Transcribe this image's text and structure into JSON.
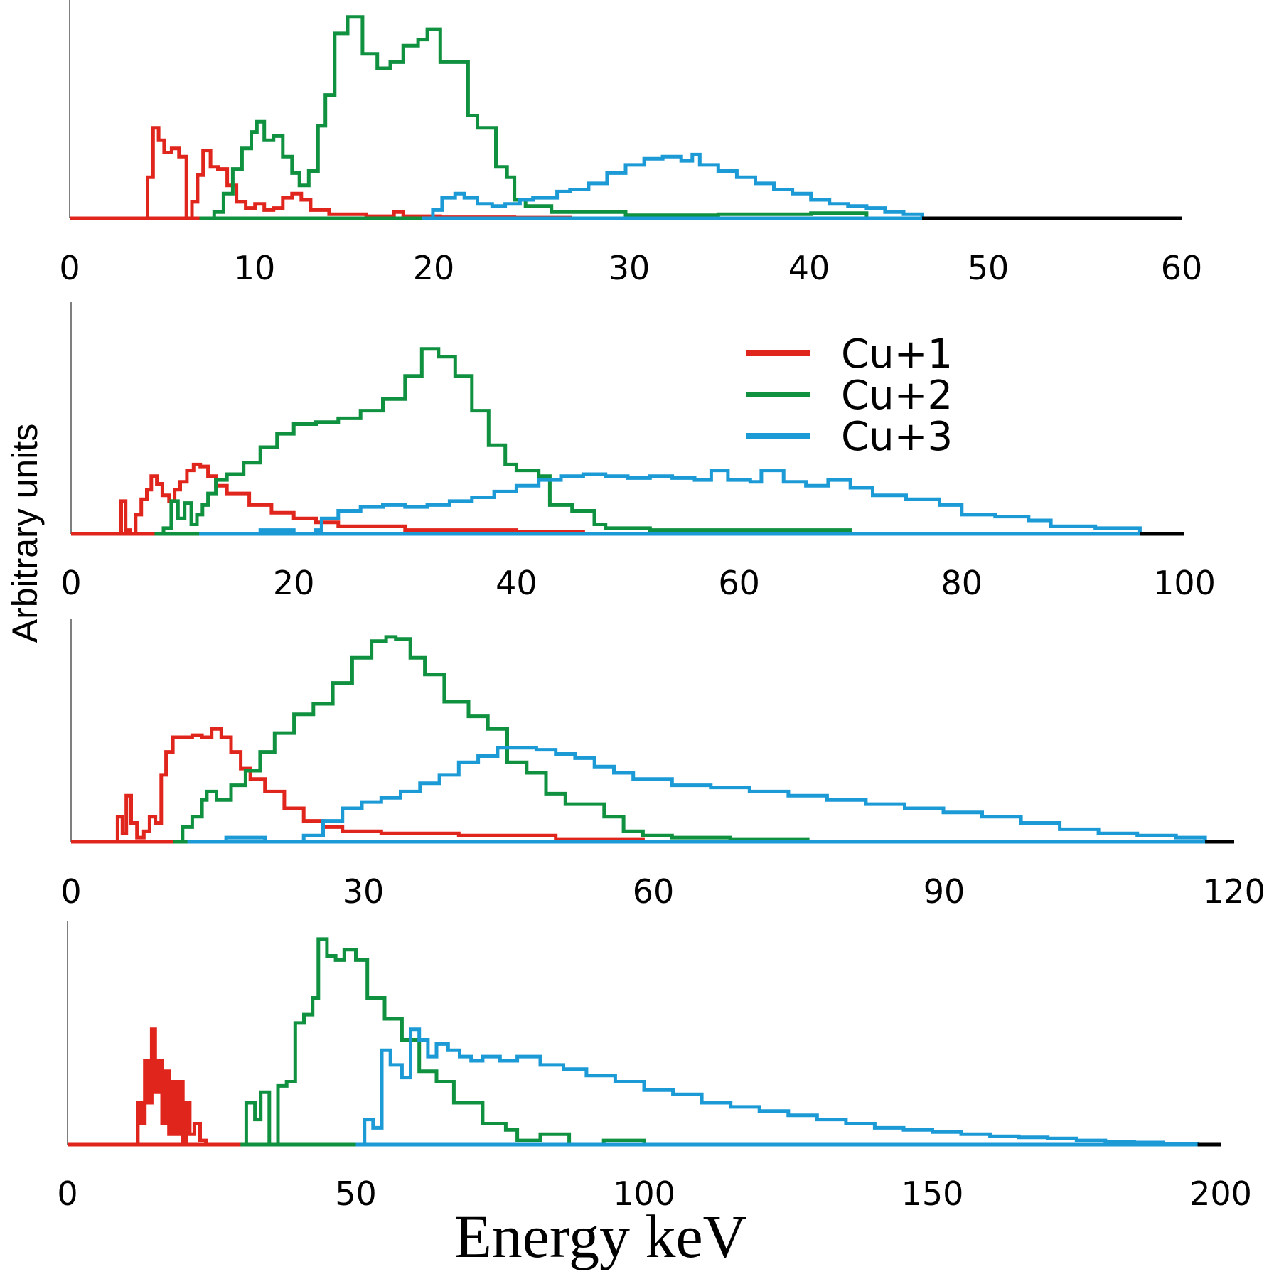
{
  "chart_data": {
    "type": "line",
    "xlabel": "Energy keV",
    "ylabel": "Arbitrary units",
    "legend": {
      "position": "upper-right of second panel",
      "entries": [
        {
          "label": "Cu+1",
          "color": "#e0251c"
        },
        {
          "label": "Cu+2",
          "color": "#0f9140"
        },
        {
          "label": "Cu+3",
          "color": "#1b9ad6"
        }
      ]
    },
    "grid": false,
    "panels": [
      {
        "xlim": [
          0,
          60
        ],
        "xticks": [
          "0",
          "10",
          "20",
          "30",
          "40",
          "50",
          "60"
        ],
        "ylim": [
          0,
          1
        ],
        "series": [
          {
            "name": "Cu+1",
            "color": "#e0251c",
            "x": [
              0,
              3.9,
              4.2,
              4.5,
              4.8,
              5.1,
              5.5,
              5.9,
              6.3,
              6.6,
              6.9,
              7.2,
              7.6,
              8.0,
              8.5,
              9.0,
              9.5,
              10.0,
              10.5,
              11.0,
              11.5,
              12.0,
              12.5,
              13.0,
              14.0,
              16.0,
              17.5,
              18.0,
              20.0,
              24.0,
              27.0
            ],
            "y": [
              0,
              0,
              0.2,
              0.44,
              0.38,
              0.32,
              0.34,
              0.3,
              0.0,
              0.08,
              0.21,
              0.33,
              0.25,
              0.24,
              0.16,
              0.08,
              0.05,
              0.07,
              0.04,
              0.05,
              0.1,
              0.12,
              0.09,
              0.04,
              0.02,
              0.01,
              0.03,
              0.01,
              0.005,
              0.003,
              0
            ]
          },
          {
            "name": "Cu+2",
            "color": "#0f9140",
            "x": [
              7.0,
              7.8,
              8.3,
              8.8,
              9.3,
              9.8,
              10.1,
              10.5,
              11.0,
              11.5,
              12.0,
              12.4,
              12.9,
              13.4,
              13.8,
              14.3,
              15.0,
              15.8,
              16.6,
              17.3,
              18.0,
              18.8,
              19.3,
              20.0,
              21.5,
              22.0,
              23.0,
              23.6,
              24.0,
              24.6,
              26.0,
              30.0,
              35.0,
              40.0,
              43.0
            ],
            "y": [
              0,
              0.03,
              0.12,
              0.24,
              0.34,
              0.42,
              0.47,
              0.38,
              0.4,
              0.3,
              0.22,
              0.16,
              0.23,
              0.45,
              0.6,
              0.9,
              0.98,
              0.8,
              0.73,
              0.76,
              0.84,
              0.87,
              0.92,
              0.76,
              0.5,
              0.44,
              0.25,
              0.2,
              0.09,
              0.06,
              0.03,
              0.015,
              0.02,
              0.025,
              0
            ]
          },
          {
            "name": "Cu+3",
            "color": "#1b9ad6",
            "x": [
              19.0,
              19.6,
              20.1,
              20.8,
              21.3,
              22.0,
              22.8,
              23.5,
              24.3,
              25.0,
              26.3,
              27.0,
              28.0,
              29.0,
              30.0,
              31.0,
              32.0,
              33.0,
              33.6,
              34.0,
              35.0,
              36.0,
              37.0,
              38.0,
              39.0,
              40.0,
              41.0,
              42.0,
              43.0,
              44.0,
              45.0,
              46.0
            ],
            "y": [
              0,
              0.04,
              0.1,
              0.12,
              0.1,
              0.07,
              0.06,
              0.07,
              0.09,
              0.1,
              0.13,
              0.14,
              0.17,
              0.22,
              0.26,
              0.29,
              0.3,
              0.28,
              0.31,
              0.26,
              0.23,
              0.2,
              0.17,
              0.14,
              0.12,
              0.09,
              0.07,
              0.06,
              0.05,
              0.03,
              0.02,
              0.0
            ]
          }
        ]
      },
      {
        "xlim": [
          0,
          100
        ],
        "xticks": [
          "0",
          "20",
          "40",
          "60",
          "80",
          "100"
        ],
        "ylim": [
          0,
          1
        ],
        "series": [
          {
            "name": "Cu+1",
            "color": "#e0251c",
            "x": [
              0,
              4.2,
              4.5,
              4.9,
              5.3,
              5.8,
              6.3,
              6.8,
              7.2,
              7.7,
              8.2,
              8.8,
              9.3,
              9.8,
              10.4,
              11.0,
              11.6,
              12.3,
              13.0,
              14.0,
              16.0,
              18.0,
              20.0,
              22.0,
              24.0,
              30.0,
              40.0,
              46.0
            ],
            "y": [
              0,
              0.0,
              0.17,
              0.02,
              0.0,
              0.1,
              0.18,
              0.23,
              0.3,
              0.26,
              0.2,
              0.17,
              0.23,
              0.27,
              0.33,
              0.36,
              0.35,
              0.3,
              0.25,
              0.21,
              0.15,
              0.11,
              0.08,
              0.06,
              0.04,
              0.02,
              0.01,
              0
            ]
          },
          {
            "name": "Cu+2",
            "color": "#0f9140",
            "x": [
              7.5,
              8.3,
              9.0,
              9.6,
              10.2,
              10.8,
              11.3,
              11.8,
              12.3,
              13.0,
              14.0,
              15.5,
              17.0,
              18.5,
              20.0,
              22.0,
              24.0,
              26.0,
              28.0,
              30.0,
              31.5,
              33.0,
              34.5,
              36.0,
              37.5,
              39.0,
              40.0,
              42.0,
              43.0,
              45.0,
              47.0,
              48.0,
              52.0,
              60.0,
              70.0
            ],
            "y": [
              0,
              0.03,
              0.17,
              0.08,
              0.16,
              0.05,
              0.1,
              0.15,
              0.21,
              0.28,
              0.31,
              0.37,
              0.45,
              0.52,
              0.57,
              0.58,
              0.6,
              0.64,
              0.7,
              0.82,
              0.96,
              0.92,
              0.82,
              0.64,
              0.46,
              0.36,
              0.33,
              0.3,
              0.15,
              0.12,
              0.05,
              0.03,
              0.02,
              0.02,
              0
            ]
          },
          {
            "name": "Cu+3",
            "color": "#1b9ad6",
            "x": [
              11.5,
              14.0,
              17.0,
              20.0,
              22.0,
              22.5,
              24.0,
              26.0,
              28.0,
              30.0,
              32.0,
              34.0,
              36.0,
              38.0,
              40.0,
              42.0,
              44.0,
              46.0,
              48.0,
              50.0,
              52.0,
              54.0,
              56.0,
              57.5,
              59.0,
              61.0,
              62.0,
              64.0,
              66.0,
              68.0,
              70.0,
              72.0,
              75.0,
              78.0,
              80.0,
              83.0,
              86.0,
              88.0,
              92.0,
              96.0
            ],
            "y": [
              0,
              0.0,
              0.02,
              0.0,
              0.02,
              0.08,
              0.12,
              0.14,
              0.15,
              0.14,
              0.15,
              0.17,
              0.19,
              0.22,
              0.25,
              0.28,
              0.3,
              0.31,
              0.3,
              0.29,
              0.3,
              0.29,
              0.28,
              0.33,
              0.28,
              0.27,
              0.33,
              0.27,
              0.25,
              0.28,
              0.24,
              0.2,
              0.18,
              0.15,
              0.1,
              0.09,
              0.07,
              0.04,
              0.03,
              0
            ]
          }
        ]
      },
      {
        "xlim": [
          0,
          120
        ],
        "xticks": [
          "0",
          "30",
          "60",
          "90",
          "120"
        ],
        "ylim": [
          0,
          1
        ],
        "series": [
          {
            "name": "Cu+1",
            "color": "#e0251c",
            "x": [
              0,
              4.3,
              4.8,
              5.3,
              5.7,
              6.2,
              6.8,
              7.5,
              8.1,
              8.7,
              9.3,
              9.8,
              10.5,
              11.5,
              12.5,
              13.5,
              14.5,
              15.5,
              16.5,
              17.5,
              18.5,
              20.0,
              22.0,
              24.0,
              26.0,
              28.0,
              32.0,
              40.0,
              50.0,
              59.0
            ],
            "y": [
              0,
              0.0,
              0.12,
              0.04,
              0.22,
              0.09,
              0.02,
              0.05,
              0.12,
              0.09,
              0.32,
              0.43,
              0.5,
              0.5,
              0.51,
              0.5,
              0.54,
              0.5,
              0.43,
              0.35,
              0.3,
              0.24,
              0.16,
              0.1,
              0.07,
              0.05,
              0.04,
              0.03,
              0.01,
              0
            ]
          },
          {
            "name": "Cu+2",
            "color": "#0f9140",
            "x": [
              10.5,
              11.5,
              12.5,
              13.5,
              14.0,
              15.0,
              16.5,
              18.0,
              19.5,
              21.0,
              23.0,
              25.0,
              27.0,
              29.0,
              31.0,
              32.5,
              33.5,
              35.0,
              36.5,
              38.5,
              41.0,
              43.0,
              45.0,
              47.0,
              49.0,
              51.0,
              53.0,
              55.0,
              57.0,
              59.0,
              62.0,
              68.0,
              76.0
            ],
            "y": [
              0,
              0.07,
              0.12,
              0.2,
              0.24,
              0.2,
              0.27,
              0.34,
              0.43,
              0.52,
              0.61,
              0.66,
              0.76,
              0.88,
              0.96,
              0.98,
              0.97,
              0.88,
              0.8,
              0.67,
              0.6,
              0.54,
              0.38,
              0.33,
              0.23,
              0.18,
              0.18,
              0.12,
              0.05,
              0.03,
              0.02,
              0.01,
              0
            ]
          },
          {
            "name": "Cu+3",
            "color": "#1b9ad6",
            "x": [
              12.0,
              16.0,
              20.0,
              24.0,
              26.0,
              28.0,
              30.0,
              32.0,
              34.0,
              36.0,
              38.0,
              40.0,
              42.0,
              44.0,
              46.0,
              48.0,
              50.0,
              52.0,
              54.0,
              56.0,
              58.0,
              62.0,
              66.0,
              70.0,
              74.0,
              78.0,
              82.0,
              86.0,
              90.0,
              94.0,
              98.0,
              102.0,
              106.0,
              110.0,
              114.0,
              117.0
            ],
            "y": [
              0,
              0.02,
              0.0,
              0.03,
              0.1,
              0.16,
              0.19,
              0.21,
              0.24,
              0.28,
              0.32,
              0.38,
              0.41,
              0.45,
              0.45,
              0.44,
              0.42,
              0.4,
              0.36,
              0.33,
              0.3,
              0.27,
              0.26,
              0.24,
              0.22,
              0.2,
              0.18,
              0.16,
              0.14,
              0.12,
              0.09,
              0.06,
              0.04,
              0.03,
              0.02,
              0
            ]
          }
        ]
      },
      {
        "xlim": [
          0,
          200
        ],
        "xticks": [
          "0",
          "50",
          "100",
          "150",
          "200"
        ],
        "ylim": [
          0,
          1
        ],
        "series": [
          {
            "name": "Cu+1",
            "color": "#e0251c",
            "x": [
              0,
              11.5,
              12.2,
              12.8,
              13.4,
              14.0,
              14.6,
              15.2,
              15.8,
              16.4,
              17.0,
              17.6,
              18.2,
              18.8,
              19.4,
              20.0,
              20.6,
              21.2,
              22.0,
              23.0,
              24.0,
              30.0,
              40.0,
              50.0
            ],
            "y": [
              0,
              0.0,
              0.2,
              0.1,
              0.4,
              0.2,
              0.55,
              0.25,
              0.4,
              0.1,
              0.35,
              0.05,
              0.3,
              0.05,
              0.3,
              0.0,
              0.2,
              0.05,
              0.1,
              0.02,
              0.0,
              0.0,
              0.0,
              0
            ]
          },
          {
            "name": "Cu+2",
            "color": "#0f9140",
            "x": [
              30.0,
              31.0,
              32.5,
              33.5,
              35.0,
              36.5,
              38.0,
              39.5,
              41.0,
              42.5,
              43.5,
              45.0,
              46.5,
              48.0,
              50.0,
              52.0,
              55.0,
              58.0,
              61.0,
              64.0,
              67.0,
              72.0,
              76.0,
              78.0,
              82.0,
              87.0,
              93.0,
              100.0
            ],
            "y": [
              0,
              0.2,
              0.12,
              0.25,
              0.0,
              0.28,
              0.3,
              0.58,
              0.62,
              0.7,
              0.98,
              0.9,
              0.88,
              0.93,
              0.88,
              0.7,
              0.6,
              0.5,
              0.35,
              0.3,
              0.2,
              0.1,
              0.07,
              0.02,
              0.05,
              0.0,
              0.02,
              0
            ]
          },
          {
            "name": "Cu+3",
            "color": "#1b9ad6",
            "x": [
              50.0,
              51.5,
              53.0,
              54.5,
              56.0,
              58.0,
              59.5,
              61.0,
              62.5,
              64.0,
              66.0,
              68.0,
              70.0,
              72.0,
              75.0,
              78.0,
              82.0,
              86.0,
              90.0,
              95.0,
              100.0,
              105.0,
              110.0,
              115.0,
              120.0,
              125.0,
              130.0,
              135.0,
              140.0,
              145.0,
              150.0,
              155.0,
              160.0,
              165.0,
              170.0,
              175.0,
              180.0,
              185.0,
              190.0,
              196.0
            ],
            "y": [
              0,
              0.12,
              0.08,
              0.45,
              0.38,
              0.32,
              0.55,
              0.5,
              0.42,
              0.48,
              0.45,
              0.42,
              0.4,
              0.42,
              0.4,
              0.42,
              0.38,
              0.36,
              0.33,
              0.3,
              0.26,
              0.24,
              0.2,
              0.18,
              0.16,
              0.14,
              0.12,
              0.1,
              0.08,
              0.07,
              0.06,
              0.05,
              0.04,
              0.035,
              0.03,
              0.02,
              0.015,
              0.01,
              0.005,
              0
            ]
          }
        ]
      }
    ]
  }
}
